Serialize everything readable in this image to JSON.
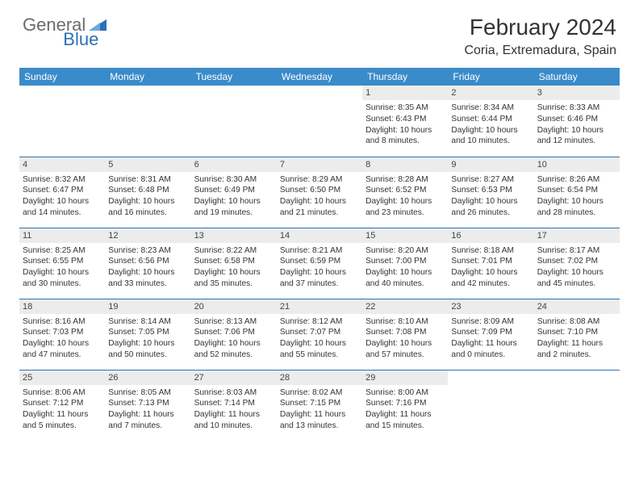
{
  "brand": {
    "general": "General",
    "blue": "Blue"
  },
  "title": {
    "month": "February 2024",
    "location": "Coria, Extremadura, Spain"
  },
  "colors": {
    "header_bg": "#3a8bc9",
    "accent": "#2a72b5",
    "grey_bar": "#ececec",
    "logo_grey": "#6b6b6b"
  },
  "weekdays": [
    "Sunday",
    "Monday",
    "Tuesday",
    "Wednesday",
    "Thursday",
    "Friday",
    "Saturday"
  ],
  "weeks": [
    [
      null,
      null,
      null,
      null,
      {
        "d": "1",
        "sr": "8:35 AM",
        "ss": "6:43 PM",
        "dl": "10 hours and 8 minutes."
      },
      {
        "d": "2",
        "sr": "8:34 AM",
        "ss": "6:44 PM",
        "dl": "10 hours and 10 minutes."
      },
      {
        "d": "3",
        "sr": "8:33 AM",
        "ss": "6:46 PM",
        "dl": "10 hours and 12 minutes."
      }
    ],
    [
      {
        "d": "4",
        "sr": "8:32 AM",
        "ss": "6:47 PM",
        "dl": "10 hours and 14 minutes."
      },
      {
        "d": "5",
        "sr": "8:31 AM",
        "ss": "6:48 PM",
        "dl": "10 hours and 16 minutes."
      },
      {
        "d": "6",
        "sr": "8:30 AM",
        "ss": "6:49 PM",
        "dl": "10 hours and 19 minutes."
      },
      {
        "d": "7",
        "sr": "8:29 AM",
        "ss": "6:50 PM",
        "dl": "10 hours and 21 minutes."
      },
      {
        "d": "8",
        "sr": "8:28 AM",
        "ss": "6:52 PM",
        "dl": "10 hours and 23 minutes."
      },
      {
        "d": "9",
        "sr": "8:27 AM",
        "ss": "6:53 PM",
        "dl": "10 hours and 26 minutes."
      },
      {
        "d": "10",
        "sr": "8:26 AM",
        "ss": "6:54 PM",
        "dl": "10 hours and 28 minutes."
      }
    ],
    [
      {
        "d": "11",
        "sr": "8:25 AM",
        "ss": "6:55 PM",
        "dl": "10 hours and 30 minutes."
      },
      {
        "d": "12",
        "sr": "8:23 AM",
        "ss": "6:56 PM",
        "dl": "10 hours and 33 minutes."
      },
      {
        "d": "13",
        "sr": "8:22 AM",
        "ss": "6:58 PM",
        "dl": "10 hours and 35 minutes."
      },
      {
        "d": "14",
        "sr": "8:21 AM",
        "ss": "6:59 PM",
        "dl": "10 hours and 37 minutes."
      },
      {
        "d": "15",
        "sr": "8:20 AM",
        "ss": "7:00 PM",
        "dl": "10 hours and 40 minutes."
      },
      {
        "d": "16",
        "sr": "8:18 AM",
        "ss": "7:01 PM",
        "dl": "10 hours and 42 minutes."
      },
      {
        "d": "17",
        "sr": "8:17 AM",
        "ss": "7:02 PM",
        "dl": "10 hours and 45 minutes."
      }
    ],
    [
      {
        "d": "18",
        "sr": "8:16 AM",
        "ss": "7:03 PM",
        "dl": "10 hours and 47 minutes."
      },
      {
        "d": "19",
        "sr": "8:14 AM",
        "ss": "7:05 PM",
        "dl": "10 hours and 50 minutes."
      },
      {
        "d": "20",
        "sr": "8:13 AM",
        "ss": "7:06 PM",
        "dl": "10 hours and 52 minutes."
      },
      {
        "d": "21",
        "sr": "8:12 AM",
        "ss": "7:07 PM",
        "dl": "10 hours and 55 minutes."
      },
      {
        "d": "22",
        "sr": "8:10 AM",
        "ss": "7:08 PM",
        "dl": "10 hours and 57 minutes."
      },
      {
        "d": "23",
        "sr": "8:09 AM",
        "ss": "7:09 PM",
        "dl": "11 hours and 0 minutes."
      },
      {
        "d": "24",
        "sr": "8:08 AM",
        "ss": "7:10 PM",
        "dl": "11 hours and 2 minutes."
      }
    ],
    [
      {
        "d": "25",
        "sr": "8:06 AM",
        "ss": "7:12 PM",
        "dl": "11 hours and 5 minutes."
      },
      {
        "d": "26",
        "sr": "8:05 AM",
        "ss": "7:13 PM",
        "dl": "11 hours and 7 minutes."
      },
      {
        "d": "27",
        "sr": "8:03 AM",
        "ss": "7:14 PM",
        "dl": "11 hours and 10 minutes."
      },
      {
        "d": "28",
        "sr": "8:02 AM",
        "ss": "7:15 PM",
        "dl": "11 hours and 13 minutes."
      },
      {
        "d": "29",
        "sr": "8:00 AM",
        "ss": "7:16 PM",
        "dl": "11 hours and 15 minutes."
      },
      null,
      null
    ]
  ]
}
